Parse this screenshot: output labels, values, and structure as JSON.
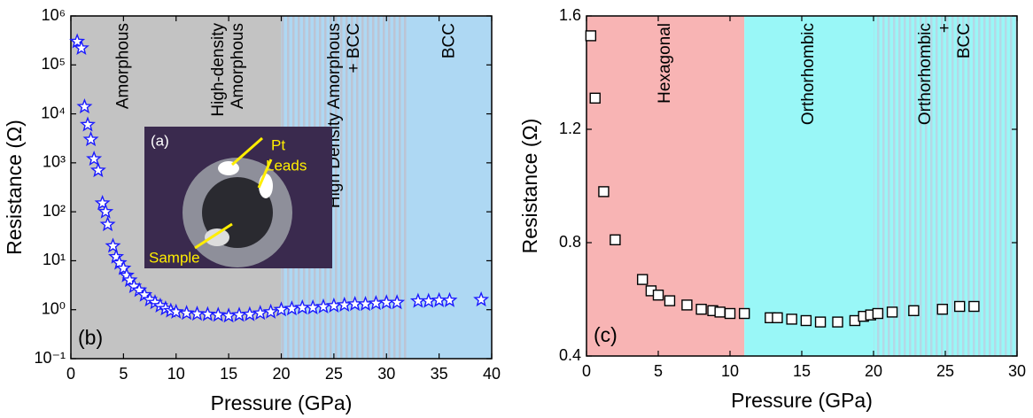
{
  "chart_data": [
    {
      "type": "scatter",
      "marker": "star",
      "color": "#1a1aff",
      "log_y": true,
      "xlabel": "Pressure (GPa)",
      "ylabel": "Resistance (Ω)",
      "panel": "(b)",
      "xlim": [
        0,
        40
      ],
      "xticks": [
        0,
        5,
        10,
        15,
        20,
        25,
        30,
        35,
        40
      ],
      "ylim": [
        0.1,
        1000000
      ],
      "yticks": [
        {
          "value": 0.1,
          "label": "10⁻¹"
        },
        {
          "value": 1,
          "label": "10⁰"
        },
        {
          "value": 10,
          "label": "10¹"
        },
        {
          "value": 100,
          "label": "10²"
        },
        {
          "value": 1000,
          "label": "10³"
        },
        {
          "value": 10000,
          "label": "10⁴"
        },
        {
          "value": 100000,
          "label": "10⁵"
        },
        {
          "value": 1000000,
          "label": "10⁶"
        }
      ],
      "regions": [
        {
          "from": 0,
          "to": 20,
          "color": "#c3c3c3",
          "labels": [
            [
              "Amorphous"
            ],
            [
              "High-density",
              "Amorphous"
            ]
          ]
        },
        {
          "from": 20,
          "to": 32,
          "color": "#aed8f3",
          "hatch": "#bcc4d4",
          "labels": [
            [
              "High Density Amorphous",
              "+ BCC"
            ]
          ]
        },
        {
          "from": 32,
          "to": 40,
          "color": "#aed8f3",
          "labels": [
            [
              "BCC"
            ]
          ]
        }
      ],
      "inset": {
        "panel": "(a)",
        "leads": [
          "Pt",
          "Leads"
        ],
        "sample": "Sample"
      },
      "x": [
        0.6,
        1.0,
        1.3,
        1.6,
        1.9,
        2.2,
        2.6,
        3.0,
        3.3,
        3.5,
        4.0,
        4.3,
        4.6,
        5.0,
        5.3,
        5.6,
        6.0,
        6.5,
        7.0,
        7.5,
        8.0,
        8.5,
        9.0,
        9.5,
        10,
        11,
        12,
        13,
        14,
        15,
        16,
        17,
        18,
        19,
        20,
        21,
        22,
        23,
        24,
        25,
        26,
        27,
        28,
        29,
        30,
        31,
        33,
        34,
        35,
        36,
        39
      ],
      "values": [
        300000,
        220000,
        14000,
        6000,
        3000,
        1200,
        700,
        150,
        100,
        55,
        20,
        12,
        9,
        7,
        5,
        4,
        3,
        2.5,
        2,
        1.6,
        1.4,
        1.2,
        1.05,
        0.95,
        0.9,
        0.85,
        0.82,
        0.8,
        0.78,
        0.75,
        0.78,
        0.8,
        0.85,
        0.9,
        1.0,
        1.05,
        1.1,
        1.1,
        1.15,
        1.2,
        1.25,
        1.3,
        1.3,
        1.35,
        1.4,
        1.4,
        1.5,
        1.5,
        1.55,
        1.55,
        1.6
      ]
    },
    {
      "type": "scatter",
      "marker": "square",
      "color": "#000000",
      "log_y": false,
      "xlabel": "Pressure (GPa)",
      "ylabel": "Resistance (Ω)",
      "panel": "(c)",
      "xlim": [
        0,
        30
      ],
      "xticks": [
        0,
        5,
        10,
        15,
        20,
        25,
        30
      ],
      "ylim": [
        0.4,
        1.6
      ],
      "yticks": [
        0.4,
        0.8,
        1.2,
        1.6
      ],
      "regions": [
        {
          "from": 0,
          "to": 11,
          "color": "#f8b4b4",
          "labels": [
            [
              "Hexagonal"
            ]
          ]
        },
        {
          "from": 11,
          "to": 20,
          "color": "#99f7f7",
          "labels": [
            [
              "Orthorhombic"
            ]
          ]
        },
        {
          "from": 20,
          "to": 30,
          "color": "#99f7f7",
          "hatch": "#b4d8e6",
          "labels": [
            [
              "Orthorhombic",
              "+",
              "BCC"
            ]
          ]
        }
      ],
      "x": [
        0.3,
        0.6,
        1.2,
        2.0,
        3.9,
        4.5,
        5.0,
        5.8,
        7.0,
        8.0,
        8.8,
        9.3,
        10.0,
        11.0,
        12.8,
        13.3,
        14.3,
        15.3,
        16.3,
        17.5,
        18.7,
        19.3,
        19.8,
        20.3,
        21.3,
        22.8,
        24.8,
        26.0,
        27.0
      ],
      "values": [
        1.53,
        1.31,
        0.98,
        0.81,
        0.67,
        0.63,
        0.615,
        0.595,
        0.58,
        0.565,
        0.56,
        0.555,
        0.55,
        0.55,
        0.535,
        0.535,
        0.53,
        0.525,
        0.52,
        0.52,
        0.525,
        0.54,
        0.545,
        0.55,
        0.555,
        0.56,
        0.565,
        0.575,
        0.575
      ]
    }
  ]
}
